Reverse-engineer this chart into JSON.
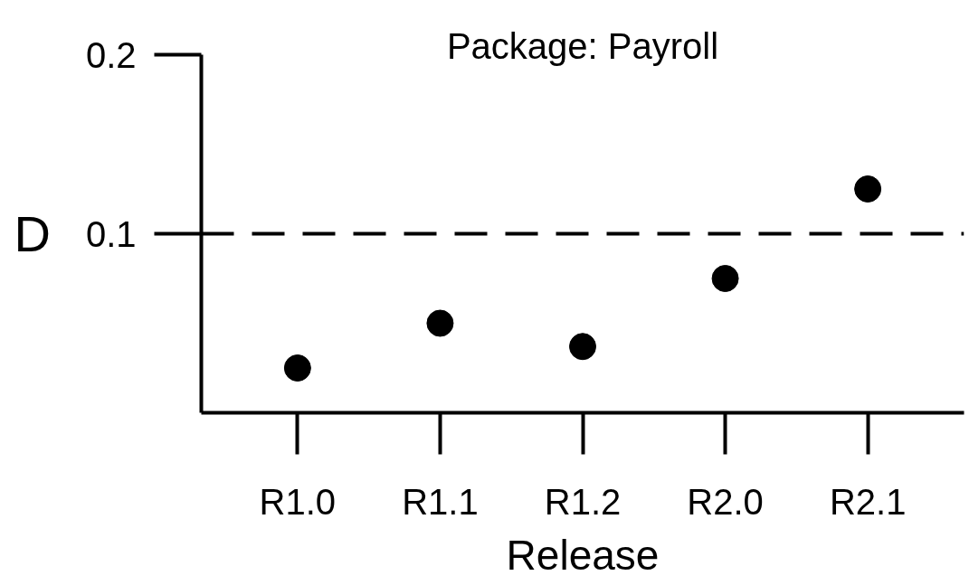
{
  "chart_data": {
    "type": "scatter",
    "title": "Package: Payroll",
    "xlabel": "Release",
    "ylabel": "D",
    "categories": [
      "R1.0",
      "R1.1",
      "R1.2",
      "R2.0",
      "R2.1"
    ],
    "values": [
      0.025,
      0.05,
      0.037,
      0.075,
      0.125
    ],
    "color": "#000000",
    "marker": "circle",
    "ylim": [
      0,
      0.2
    ],
    "yticks": [
      0.1,
      0.2
    ],
    "ref_lines": [
      {
        "axis": "y",
        "value": 0.1,
        "line_style": "dashed",
        "color": "#000000"
      }
    ]
  }
}
